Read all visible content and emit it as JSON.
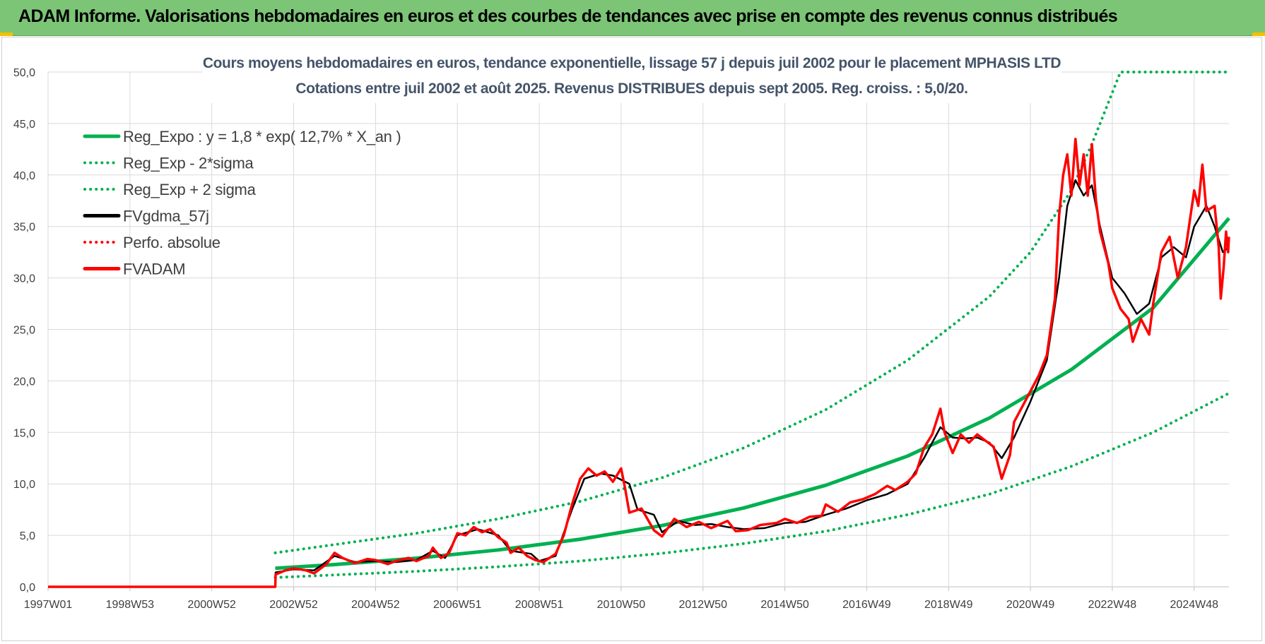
{
  "header": {
    "title": "ADAM Informe. Valorisations hebdomadaires en euros et des courbes de tendances avec prise en compte des revenus connus distribués",
    "background_color": "#7cc576"
  },
  "chart_data": {
    "type": "line",
    "title": "Cours moyens hebdomadaires en euros, tendance exponentielle, lissage 57 j depuis juil 2002 pour le placement MPHASIS LTD",
    "subtitle": "Cotations entre juil 2002 et août 2025. Revenus DISTRIBUES depuis sept 2005. Reg. croiss. : 5,0/20.",
    "xlabel": "",
    "ylabel": "",
    "x_tick_labels": [
      "1997W01",
      "1998W53",
      "2000W52",
      "2002W52",
      "2004W52",
      "2006W51",
      "2008W51",
      "2010W50",
      "2012W50",
      "2014W50",
      "2016W49",
      "2018W49",
      "2020W49",
      "2022W48",
      "2024W48"
    ],
    "x_tick_years": [
      1997.0,
      1999.0,
      2001.0,
      2003.0,
      2005.0,
      2007.0,
      2009.0,
      2011.0,
      2013.0,
      2015.0,
      2017.0,
      2019.0,
      2021.0,
      2023.0,
      2025.0
    ],
    "y_tick_labels": [
      "0,0",
      "5,0",
      "10,0",
      "15,0",
      "20,0",
      "25,0",
      "30,0",
      "35,0",
      "40,0",
      "45,0",
      "50,0"
    ],
    "xlim": [
      1997.0,
      2025.85
    ],
    "ylim": [
      0,
      50
    ],
    "grid": true,
    "legend_position": "top-left",
    "series": [
      {
        "name": "Reg_Expo : y = 1,8 * exp( 12,7% *  X_an )",
        "color": "#00b050",
        "style": "solid",
        "points": [
          [
            2002.55,
            1.8
          ],
          [
            2004,
            2.16
          ],
          [
            2006,
            2.78
          ],
          [
            2008,
            3.58
          ],
          [
            2010,
            4.62
          ],
          [
            2012,
            5.95
          ],
          [
            2014,
            7.66
          ],
          [
            2016,
            9.86
          ],
          [
            2018,
            12.7
          ],
          [
            2020,
            16.4
          ],
          [
            2022,
            21.1
          ],
          [
            2024,
            27.1
          ],
          [
            2025.85,
            35.8
          ]
        ]
      },
      {
        "name": "Reg_Exp - 2*sigma",
        "color": "#00b050",
        "style": "dotted",
        "points": [
          [
            2002.55,
            0.9
          ],
          [
            2004,
            1.15
          ],
          [
            2006,
            1.5
          ],
          [
            2008,
            1.95
          ],
          [
            2010,
            2.5
          ],
          [
            2012,
            3.25
          ],
          [
            2014,
            4.2
          ],
          [
            2016,
            5.4
          ],
          [
            2018,
            7.0
          ],
          [
            2020,
            9.0
          ],
          [
            2022,
            11.7
          ],
          [
            2024,
            15.0
          ],
          [
            2025.85,
            18.8
          ]
        ]
      },
      {
        "name": "Reg_Exp + 2 sigma",
        "color": "#00b050",
        "style": "dotted",
        "points": [
          [
            2002.55,
            3.3
          ],
          [
            2004,
            4.1
          ],
          [
            2006,
            5.2
          ],
          [
            2008,
            6.6
          ],
          [
            2010,
            8.3
          ],
          [
            2012,
            10.6
          ],
          [
            2014,
            13.5
          ],
          [
            2016,
            17.2
          ],
          [
            2018,
            22.0
          ],
          [
            2020,
            28.2
          ],
          [
            2021,
            32.5
          ],
          [
            2022,
            38.5
          ],
          [
            2022.5,
            43.0
          ],
          [
            2023.2,
            50.0
          ],
          [
            2025.85,
            50.0
          ]
        ]
      },
      {
        "name": "FVgdma_57j",
        "color": "#000000",
        "style": "solid",
        "points": [
          [
            1997.0,
            0
          ],
          [
            2002.55,
            0
          ],
          [
            2002.56,
            1.4
          ],
          [
            2003.0,
            1.7
          ],
          [
            2003.5,
            1.6
          ],
          [
            2004.0,
            3.0
          ],
          [
            2004.5,
            2.4
          ],
          [
            2005.0,
            2.5
          ],
          [
            2005.5,
            2.4
          ],
          [
            2006.0,
            2.6
          ],
          [
            2006.4,
            3.5
          ],
          [
            2006.7,
            2.8
          ],
          [
            2007.0,
            5.0
          ],
          [
            2007.5,
            5.6
          ],
          [
            2008.0,
            5.0
          ],
          [
            2008.3,
            3.5
          ],
          [
            2008.8,
            3.2
          ],
          [
            2009.0,
            2.5
          ],
          [
            2009.4,
            3.0
          ],
          [
            2009.8,
            7.5
          ],
          [
            2010.1,
            10.5
          ],
          [
            2010.5,
            11.0
          ],
          [
            2010.8,
            10.8
          ],
          [
            2011.2,
            10.0
          ],
          [
            2011.4,
            7.5
          ],
          [
            2011.8,
            7.0
          ],
          [
            2012.0,
            5.3
          ],
          [
            2012.4,
            6.4
          ],
          [
            2012.8,
            6.0
          ],
          [
            2013.2,
            6.1
          ],
          [
            2013.6,
            5.8
          ],
          [
            2014.0,
            5.6
          ],
          [
            2014.5,
            5.7
          ],
          [
            2015.0,
            6.2
          ],
          [
            2015.5,
            6.3
          ],
          [
            2016.0,
            7.0
          ],
          [
            2016.5,
            7.6
          ],
          [
            2017.0,
            8.4
          ],
          [
            2017.5,
            9.0
          ],
          [
            2018.0,
            10.0
          ],
          [
            2018.4,
            12.5
          ],
          [
            2018.8,
            15.5
          ],
          [
            2019.1,
            14.5
          ],
          [
            2019.4,
            14.4
          ],
          [
            2019.7,
            14.5
          ],
          [
            2020.0,
            14.0
          ],
          [
            2020.3,
            12.5
          ],
          [
            2020.6,
            14.5
          ],
          [
            2021.0,
            18.0
          ],
          [
            2021.4,
            22.0
          ],
          [
            2021.7,
            30.0
          ],
          [
            2021.9,
            37.0
          ],
          [
            2022.1,
            39.5
          ],
          [
            2022.3,
            38.0
          ],
          [
            2022.5,
            39.0
          ],
          [
            2022.7,
            35.0
          ],
          [
            2023.0,
            30.0
          ],
          [
            2023.3,
            28.5
          ],
          [
            2023.6,
            26.5
          ],
          [
            2023.9,
            27.5
          ],
          [
            2024.2,
            32.0
          ],
          [
            2024.5,
            33.0
          ],
          [
            2024.8,
            32.0
          ],
          [
            2025.0,
            35.0
          ],
          [
            2025.3,
            37.0
          ],
          [
            2025.5,
            35.0
          ],
          [
            2025.7,
            32.5
          ],
          [
            2025.85,
            33.0
          ]
        ]
      },
      {
        "name": "Perfo. absolue",
        "color": "#ff0000",
        "style": "dotted",
        "points": []
      },
      {
        "name": "FVADAM",
        "color": "#ff0000",
        "style": "solid",
        "points": [
          [
            1997.0,
            0
          ],
          [
            2002.55,
            0
          ],
          [
            2002.56,
            1.2
          ],
          [
            2002.8,
            1.6
          ],
          [
            2003.0,
            1.8
          ],
          [
            2003.3,
            1.6
          ],
          [
            2003.5,
            1.3
          ],
          [
            2003.8,
            2.2
          ],
          [
            2004.0,
            3.3
          ],
          [
            2004.2,
            2.8
          ],
          [
            2004.5,
            2.3
          ],
          [
            2004.8,
            2.7
          ],
          [
            2005.0,
            2.6
          ],
          [
            2005.3,
            2.2
          ],
          [
            2005.5,
            2.5
          ],
          [
            2005.8,
            2.8
          ],
          [
            2006.0,
            2.5
          ],
          [
            2006.3,
            3.0
          ],
          [
            2006.4,
            3.8
          ],
          [
            2006.6,
            2.8
          ],
          [
            2006.8,
            3.3
          ],
          [
            2007.0,
            5.2
          ],
          [
            2007.2,
            5.0
          ],
          [
            2007.4,
            5.8
          ],
          [
            2007.6,
            5.3
          ],
          [
            2007.8,
            5.6
          ],
          [
            2008.0,
            4.8
          ],
          [
            2008.2,
            4.3
          ],
          [
            2008.3,
            3.3
          ],
          [
            2008.5,
            3.8
          ],
          [
            2008.7,
            3.0
          ],
          [
            2008.9,
            2.6
          ],
          [
            2009.1,
            2.4
          ],
          [
            2009.4,
            3.2
          ],
          [
            2009.6,
            5.0
          ],
          [
            2009.8,
            8.0
          ],
          [
            2010.0,
            10.5
          ],
          [
            2010.2,
            11.5
          ],
          [
            2010.4,
            10.8
          ],
          [
            2010.6,
            11.2
          ],
          [
            2010.8,
            10.2
          ],
          [
            2011.0,
            11.5
          ],
          [
            2011.1,
            9.5
          ],
          [
            2011.2,
            7.2
          ],
          [
            2011.5,
            7.6
          ],
          [
            2011.8,
            5.5
          ],
          [
            2012.0,
            4.9
          ],
          [
            2012.3,
            6.6
          ],
          [
            2012.6,
            5.8
          ],
          [
            2012.9,
            6.3
          ],
          [
            2013.2,
            5.7
          ],
          [
            2013.6,
            6.4
          ],
          [
            2013.8,
            5.4
          ],
          [
            2014.1,
            5.5
          ],
          [
            2014.4,
            6.0
          ],
          [
            2014.8,
            6.2
          ],
          [
            2015.0,
            6.6
          ],
          [
            2015.3,
            6.2
          ],
          [
            2015.6,
            6.8
          ],
          [
            2015.9,
            6.9
          ],
          [
            2016.0,
            8.0
          ],
          [
            2016.3,
            7.3
          ],
          [
            2016.6,
            8.2
          ],
          [
            2016.9,
            8.5
          ],
          [
            2017.2,
            9.0
          ],
          [
            2017.5,
            9.8
          ],
          [
            2017.7,
            9.4
          ],
          [
            2018.0,
            10.2
          ],
          [
            2018.2,
            11.0
          ],
          [
            2018.4,
            13.5
          ],
          [
            2018.6,
            14.8
          ],
          [
            2018.8,
            17.3
          ],
          [
            2018.9,
            15.0
          ],
          [
            2019.1,
            13.0
          ],
          [
            2019.3,
            14.8
          ],
          [
            2019.5,
            14.0
          ],
          [
            2019.7,
            14.8
          ],
          [
            2019.9,
            14.2
          ],
          [
            2020.1,
            13.6
          ],
          [
            2020.3,
            10.5
          ],
          [
            2020.5,
            12.8
          ],
          [
            2020.6,
            16.0
          ],
          [
            2020.8,
            17.5
          ],
          [
            2021.0,
            19.0
          ],
          [
            2021.2,
            20.5
          ],
          [
            2021.4,
            22.5
          ],
          [
            2021.6,
            28.0
          ],
          [
            2021.7,
            36.0
          ],
          [
            2021.8,
            40.0
          ],
          [
            2021.9,
            42.0
          ],
          [
            2022.0,
            38.0
          ],
          [
            2022.1,
            43.5
          ],
          [
            2022.2,
            39.0
          ],
          [
            2022.3,
            42.0
          ],
          [
            2022.4,
            38.0
          ],
          [
            2022.5,
            43.0
          ],
          [
            2022.6,
            37.5
          ],
          [
            2022.7,
            34.5
          ],
          [
            2022.9,
            31.5
          ],
          [
            2023.0,
            29.0
          ],
          [
            2023.2,
            27.0
          ],
          [
            2023.4,
            26.0
          ],
          [
            2023.5,
            23.8
          ],
          [
            2023.7,
            26.0
          ],
          [
            2023.9,
            24.5
          ],
          [
            2024.0,
            27.5
          ],
          [
            2024.2,
            32.5
          ],
          [
            2024.4,
            34.0
          ],
          [
            2024.6,
            30.0
          ],
          [
            2024.8,
            33.0
          ],
          [
            2025.0,
            38.5
          ],
          [
            2025.1,
            37.0
          ],
          [
            2025.2,
            41.0
          ],
          [
            2025.3,
            36.5
          ],
          [
            2025.5,
            37.0
          ],
          [
            2025.6,
            33.0
          ],
          [
            2025.65,
            28.0
          ],
          [
            2025.72,
            31.0
          ],
          [
            2025.78,
            34.5
          ],
          [
            2025.83,
            32.5
          ],
          [
            2025.85,
            34.0
          ]
        ]
      }
    ]
  }
}
